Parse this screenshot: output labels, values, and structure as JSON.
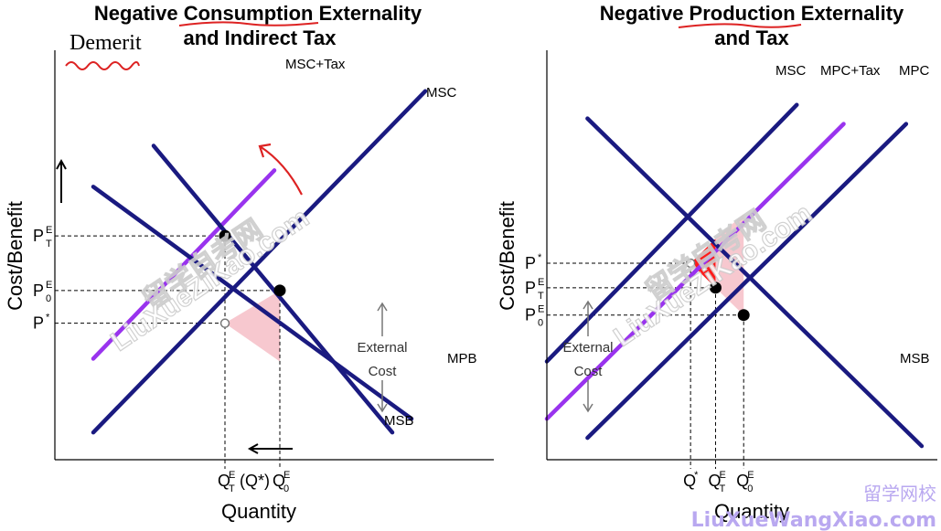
{
  "chart_data": [
    {
      "type": "line",
      "title": "Negative Consumption Externality and Indirect Tax",
      "title_lines": [
        "Negative Consumption Externality",
        "and Indirect Tax"
      ],
      "xlabel": "Quantity",
      "ylabel": "Cost/Benefit",
      "handwritten_note": "Demerit",
      "series": [
        {
          "name": "MSC+Tax",
          "color": "#9933ee",
          "points": [
            [
              1.4,
              3.7
            ],
            [
              8.0,
              10.6
            ]
          ]
        },
        {
          "name": "MSC",
          "color": "#1a1a80",
          "points": [
            [
              1.4,
              1.0
            ],
            [
              13.5,
              13.5
            ]
          ]
        },
        {
          "name": "MPB",
          "color": "#1a1a80",
          "points": [
            [
              1.4,
              10.0
            ],
            [
              13.0,
              1.5
            ]
          ]
        },
        {
          "name": "MSB",
          "color": "#1a1a80",
          "points": [
            [
              3.6,
              11.5
            ],
            [
              12.3,
              1.0
            ]
          ]
        }
      ],
      "points": [
        {
          "x": 6.2,
          "y": 8.2,
          "style": "filled"
        },
        {
          "x": 8.2,
          "y": 6.2,
          "style": "filled"
        },
        {
          "x": 6.2,
          "y": 5.0,
          "style": "open"
        }
      ],
      "shaded_region": {
        "color": "#f7c8cf",
        "vertices": [
          [
            6.2,
            5.0
          ],
          [
            8.2,
            6.2
          ],
          [
            8.2,
            3.6
          ]
        ]
      },
      "price_labels": [
        {
          "base": "P",
          "sup": "E",
          "sub": "T",
          "y": 8.2
        },
        {
          "base": "P",
          "sup": "E",
          "sub": "0",
          "y": 6.2
        },
        {
          "base": "P",
          "sup": "*",
          "sub": "",
          "y": 5.0
        }
      ],
      "quantity_labels": [
        {
          "base": "Q",
          "sup": "E",
          "sub": "T",
          "suffix": "(Q*)",
          "x": 6.2
        },
        {
          "base": "Q",
          "sup": "E",
          "sub": "0",
          "suffix": "",
          "x": 8.2
        }
      ],
      "annotation": {
        "lines": [
          "External",
          "Cost"
        ]
      }
    },
    {
      "type": "line",
      "title": "Negative Production Externality and Tax",
      "title_lines": [
        "Negative Production Externality",
        "and Tax"
      ],
      "xlabel": "Quantity",
      "ylabel": "Cost/Benefit",
      "series": [
        {
          "name": "MSC",
          "color": "#1a1a80",
          "points": [
            [
              0.0,
              3.6
            ],
            [
              8.0,
              13.0
            ]
          ]
        },
        {
          "name": "MPC+Tax",
          "color": "#9933ee",
          "points": [
            [
              0.0,
              1.5
            ],
            [
              9.5,
              12.3
            ]
          ]
        },
        {
          "name": "MPC",
          "color": "#1a1a80",
          "points": [
            [
              1.3,
              0.8
            ],
            [
              11.5,
              12.3
            ]
          ]
        },
        {
          "name": "MSB",
          "color": "#1a1a80",
          "points": [
            [
              1.3,
              12.5
            ],
            [
              12.0,
              0.5
            ]
          ]
        }
      ],
      "points": [
        {
          "x": 4.6,
          "y": 7.2,
          "style": "open"
        },
        {
          "x": 5.4,
          "y": 6.3,
          "style": "filled"
        },
        {
          "x": 6.3,
          "y": 5.3,
          "style": "filled"
        }
      ],
      "shaded_regions": [
        {
          "color": "#ff1a1a",
          "vertices": [
            [
              4.6,
              7.2
            ],
            [
              5.4,
              8.1
            ],
            [
              5.4,
              6.3
            ]
          ]
        },
        {
          "color": "#f7c8cf",
          "vertices": [
            [
              5.4,
              8.1
            ],
            [
              6.3,
              9.0
            ],
            [
              6.3,
              5.3
            ],
            [
              5.4,
              6.3
            ]
          ]
        }
      ],
      "price_labels": [
        {
          "base": "P",
          "sup": "*",
          "sub": "",
          "y": 7.2
        },
        {
          "base": "P",
          "sup": "E",
          "sub": "T",
          "y": 6.3
        },
        {
          "base": "P",
          "sup": "E",
          "sub": "0",
          "y": 5.3
        }
      ],
      "quantity_labels": [
        {
          "base": "Q",
          "sup": "*",
          "sub": "",
          "suffix": "",
          "x": 4.6
        },
        {
          "base": "Q",
          "sup": "E",
          "sub": "T",
          "suffix": "",
          "x": 5.4
        },
        {
          "base": "Q",
          "sup": "E",
          "sub": "0",
          "suffix": "",
          "x": 6.3
        }
      ],
      "annotation": {
        "lines": [
          "External",
          "Cost"
        ]
      }
    }
  ],
  "watermark": {
    "cn": "留学自考网",
    "en": "LiuXueZiKao.com",
    "brand_cn": "留学网校",
    "brand_en": "LiuXueWangXiao.com"
  }
}
